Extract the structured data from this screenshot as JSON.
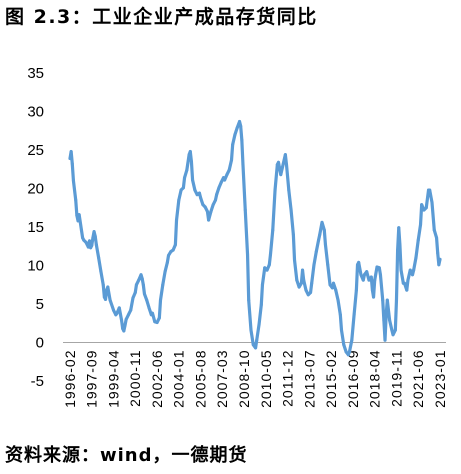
{
  "chart_data": {
    "type": "line",
    "title": "图 2.3：工业企业产成品存货同比",
    "x_tick_labels": [
      "1996-02",
      "1997-09",
      "1999-04",
      "2000-11",
      "2002-06",
      "2004-01",
      "2005-08",
      "2007-03",
      "2008-10",
      "2010-05",
      "2011-12",
      "2013-07",
      "2015-02",
      "2016-09",
      "2018-04",
      "2019-11",
      "2021-06",
      "2023-01"
    ],
    "xlim": [
      "1996-02",
      "2023-01"
    ],
    "y_ticks": [
      -5,
      0,
      5,
      10,
      15,
      20,
      25,
      30,
      35
    ],
    "ylim": [
      -5,
      35
    ],
    "grid": false,
    "line_color": "#5B9BD5",
    "series": [
      {
        "points": [
          [
            "1996-02",
            23.9
          ],
          [
            "1996-03",
            24.8
          ],
          [
            "1996-04",
            23.2
          ],
          [
            "1996-05",
            21.0
          ],
          [
            "1996-07",
            18.5
          ],
          [
            "1996-08",
            16.5
          ],
          [
            "1996-09",
            15.8
          ],
          [
            "1996-10",
            16.6
          ],
          [
            "1996-12",
            14.6
          ],
          [
            "1997-01",
            13.6
          ],
          [
            "1997-02",
            13.3
          ],
          [
            "1997-04",
            13.0
          ],
          [
            "1997-06",
            12.4
          ],
          [
            "1997-07",
            13.2
          ],
          [
            "1997-08",
            12.3
          ],
          [
            "1997-09",
            12.6
          ],
          [
            "1997-10",
            13.6
          ],
          [
            "1997-11",
            14.4
          ],
          [
            "1997-12",
            13.8
          ],
          [
            "1998-01",
            12.7
          ],
          [
            "1998-03",
            11.0
          ],
          [
            "1998-05",
            9.2
          ],
          [
            "1998-07",
            7.5
          ],
          [
            "1998-08",
            5.9
          ],
          [
            "1998-09",
            5.6
          ],
          [
            "1998-10",
            6.8
          ],
          [
            "1998-11",
            7.2
          ],
          [
            "1999-01",
            5.5
          ],
          [
            "1999-04",
            4.2
          ],
          [
            "1999-06",
            3.6
          ],
          [
            "1999-07",
            3.8
          ],
          [
            "1999-09",
            4.5
          ],
          [
            "1999-11",
            2.9
          ],
          [
            "1999-12",
            1.8
          ],
          [
            "2000-01",
            1.5
          ],
          [
            "2000-02",
            2.2
          ],
          [
            "2000-03",
            3.0
          ],
          [
            "2000-05",
            3.6
          ],
          [
            "2000-07",
            4.2
          ],
          [
            "2000-09",
            5.8
          ],
          [
            "2000-11",
            6.5
          ],
          [
            "2000-12",
            7.5
          ],
          [
            "2001-02",
            8.1
          ],
          [
            "2001-04",
            8.8
          ],
          [
            "2001-05",
            8.3
          ],
          [
            "2001-06",
            7.5
          ],
          [
            "2001-07",
            6.3
          ],
          [
            "2001-09",
            5.5
          ],
          [
            "2001-11",
            4.5
          ],
          [
            "2002-01",
            3.6
          ],
          [
            "2002-02",
            3.8
          ],
          [
            "2002-04",
            2.7
          ],
          [
            "2002-06",
            2.6
          ],
          [
            "2002-08",
            3.2
          ],
          [
            "2002-09",
            5.5
          ],
          [
            "2002-11",
            7.5
          ],
          [
            "2003-01",
            9.2
          ],
          [
            "2003-03",
            10.4
          ],
          [
            "2003-04",
            11.3
          ],
          [
            "2003-06",
            11.8
          ],
          [
            "2003-08",
            12.0
          ],
          [
            "2003-10",
            12.7
          ],
          [
            "2003-11",
            15.9
          ],
          [
            "2004-01",
            18.5
          ],
          [
            "2004-03",
            19.8
          ],
          [
            "2004-05",
            20.1
          ],
          [
            "2004-06",
            21.4
          ],
          [
            "2004-08",
            22.4
          ],
          [
            "2004-10",
            24.4
          ],
          [
            "2004-11",
            24.8
          ],
          [
            "2004-12",
            23.5
          ],
          [
            "2005-01",
            21.1
          ],
          [
            "2005-03",
            19.8
          ],
          [
            "2005-05",
            19.2
          ],
          [
            "2005-07",
            19.4
          ],
          [
            "2005-08",
            18.8
          ],
          [
            "2005-10",
            17.9
          ],
          [
            "2005-12",
            17.6
          ],
          [
            "2006-02",
            17.0
          ],
          [
            "2006-03",
            15.9
          ],
          [
            "2006-05",
            17.0
          ],
          [
            "2006-07",
            17.9
          ],
          [
            "2006-09",
            18.5
          ],
          [
            "2006-10",
            19.2
          ],
          [
            "2006-12",
            20.1
          ],
          [
            "2007-02",
            20.8
          ],
          [
            "2007-04",
            21.4
          ],
          [
            "2007-05",
            21.1
          ],
          [
            "2007-07",
            21.8
          ],
          [
            "2007-09",
            22.4
          ],
          [
            "2007-11",
            23.7
          ],
          [
            "2007-12",
            25.7
          ],
          [
            "2008-02",
            27.0
          ],
          [
            "2008-04",
            27.9
          ],
          [
            "2008-06",
            28.7
          ],
          [
            "2008-07",
            28.1
          ],
          [
            "2008-08",
            26.3
          ],
          [
            "2008-09",
            23.1
          ],
          [
            "2008-11",
            17.2
          ],
          [
            "2009-01",
            11.4
          ],
          [
            "2009-02",
            5.5
          ],
          [
            "2009-04",
            1.6
          ],
          [
            "2009-06",
            -0.3
          ],
          [
            "2009-08",
            -0.7
          ],
          [
            "2009-09",
            0.3
          ],
          [
            "2009-11",
            2.3
          ],
          [
            "2010-01",
            4.9
          ],
          [
            "2010-02",
            7.5
          ],
          [
            "2010-04",
            9.7
          ],
          [
            "2010-06",
            9.4
          ],
          [
            "2010-08",
            10.1
          ],
          [
            "2010-09",
            11.4
          ],
          [
            "2010-11",
            14.6
          ],
          [
            "2011-01",
            19.8
          ],
          [
            "2011-03",
            23.1
          ],
          [
            "2011-04",
            23.4
          ],
          [
            "2011-06",
            21.8
          ],
          [
            "2011-08",
            23.1
          ],
          [
            "2011-10",
            24.4
          ],
          [
            "2011-11",
            23.1
          ],
          [
            "2012-01",
            19.8
          ],
          [
            "2012-03",
            17.2
          ],
          [
            "2012-05",
            14.0
          ],
          [
            "2012-06",
            10.7
          ],
          [
            "2012-08",
            8.1
          ],
          [
            "2012-10",
            7.2
          ],
          [
            "2012-12",
            7.7
          ],
          [
            "2013-01",
            9.4
          ],
          [
            "2013-02",
            8.1
          ],
          [
            "2013-04",
            6.8
          ],
          [
            "2013-06",
            6.2
          ],
          [
            "2013-08",
            6.5
          ],
          [
            "2013-09",
            7.7
          ],
          [
            "2013-11",
            10.1
          ],
          [
            "2014-01",
            11.8
          ],
          [
            "2014-03",
            13.3
          ],
          [
            "2014-04",
            14.0
          ],
          [
            "2014-06",
            15.6
          ],
          [
            "2014-08",
            14.6
          ],
          [
            "2014-09",
            12.7
          ],
          [
            "2014-11",
            10.1
          ],
          [
            "2015-01",
            7.5
          ],
          [
            "2015-03",
            7.1
          ],
          [
            "2015-04",
            7.7
          ],
          [
            "2015-06",
            6.8
          ],
          [
            "2015-08",
            5.5
          ],
          [
            "2015-10",
            3.6
          ],
          [
            "2015-11",
            1.6
          ],
          [
            "2016-01",
            -0.3
          ],
          [
            "2016-03",
            -1.2
          ],
          [
            "2016-05",
            -1.6
          ],
          [
            "2016-06",
            -1.2
          ],
          [
            "2016-08",
            0.3
          ],
          [
            "2016-10",
            3.6
          ],
          [
            "2016-12",
            6.8
          ],
          [
            "2017-01",
            10.1
          ],
          [
            "2017-02",
            10.4
          ],
          [
            "2017-04",
            8.8
          ],
          [
            "2017-06",
            8.1
          ],
          [
            "2017-07",
            8.8
          ],
          [
            "2017-09",
            9.2
          ],
          [
            "2017-11",
            8.1
          ],
          [
            "2018-01",
            8.5
          ],
          [
            "2018-02",
            6.8
          ],
          [
            "2018-03",
            5.9
          ],
          [
            "2018-04",
            8.1
          ],
          [
            "2018-06",
            9.8
          ],
          [
            "2018-08",
            9.7
          ],
          [
            "2018-09",
            8.8
          ],
          [
            "2018-11",
            5.5
          ],
          [
            "2018-12",
            2.9
          ],
          [
            "2019-01",
            0.3
          ],
          [
            "2019-02",
            3.6
          ],
          [
            "2019-03",
            5.5
          ],
          [
            "2019-04",
            4.2
          ],
          [
            "2019-05",
            2.9
          ],
          [
            "2019-07",
            1.6
          ],
          [
            "2019-08",
            1.0
          ],
          [
            "2019-10",
            1.6
          ],
          [
            "2019-11",
            5.5
          ],
          [
            "2019-12",
            12.0
          ],
          [
            "2020-01",
            14.9
          ],
          [
            "2020-02",
            12.7
          ],
          [
            "2020-03",
            9.4
          ],
          [
            "2020-05",
            7.7
          ],
          [
            "2020-06",
            7.7
          ],
          [
            "2020-08",
            6.8
          ],
          [
            "2020-09",
            8.1
          ],
          [
            "2020-11",
            9.4
          ],
          [
            "2021-01",
            8.8
          ],
          [
            "2021-02",
            9.4
          ],
          [
            "2021-04",
            11.0
          ],
          [
            "2021-06",
            13.3
          ],
          [
            "2021-08",
            15.3
          ],
          [
            "2021-09",
            17.9
          ],
          [
            "2021-11",
            17.2
          ],
          [
            "2022-01",
            17.5
          ],
          [
            "2022-03",
            19.8
          ],
          [
            "2022-04",
            19.8
          ],
          [
            "2022-06",
            18.2
          ],
          [
            "2022-08",
            14.6
          ],
          [
            "2022-10",
            13.6
          ],
          [
            "2022-11",
            11.6
          ],
          [
            "2022-12",
            10.1
          ],
          [
            "2023-01",
            10.8
          ]
        ]
      }
    ]
  },
  "source": "资料来源：wind，一德期货"
}
